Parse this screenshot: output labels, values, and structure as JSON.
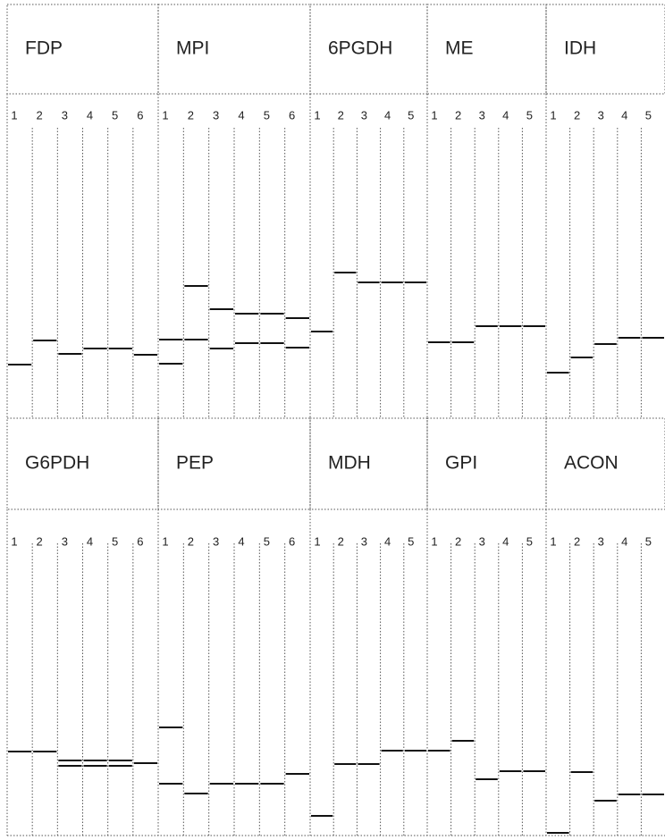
{
  "panels": [
    {
      "name": "FDP",
      "lanes": [
        "1",
        "2",
        "3",
        "4",
        "5",
        "6"
      ]
    },
    {
      "name": "MPI",
      "lanes": [
        "1",
        "2",
        "3",
        "4",
        "5",
        "6"
      ]
    },
    {
      "name": "6PGDH",
      "lanes": [
        "1",
        "2",
        "3",
        "4",
        "5"
      ]
    },
    {
      "name": "ME",
      "lanes": [
        "1",
        "2",
        "3",
        "4",
        "5"
      ]
    },
    {
      "name": "IDH",
      "lanes": [
        "1",
        "2",
        "3",
        "4",
        "5"
      ]
    },
    {
      "name": "G6PDH",
      "lanes": [
        "1",
        "2",
        "3",
        "4",
        "5",
        "6"
      ]
    },
    {
      "name": "PEP",
      "lanes": [
        "1",
        "2",
        "3",
        "4",
        "5",
        "6"
      ]
    },
    {
      "name": "MDH",
      "lanes": [
        "1",
        "2",
        "3",
        "4",
        "5"
      ]
    },
    {
      "name": "GPI",
      "lanes": [
        "1",
        "2",
        "3",
        "4",
        "5"
      ]
    },
    {
      "name": "ACON",
      "lanes": [
        "1",
        "2",
        "3",
        "4",
        "5"
      ]
    }
  ]
}
